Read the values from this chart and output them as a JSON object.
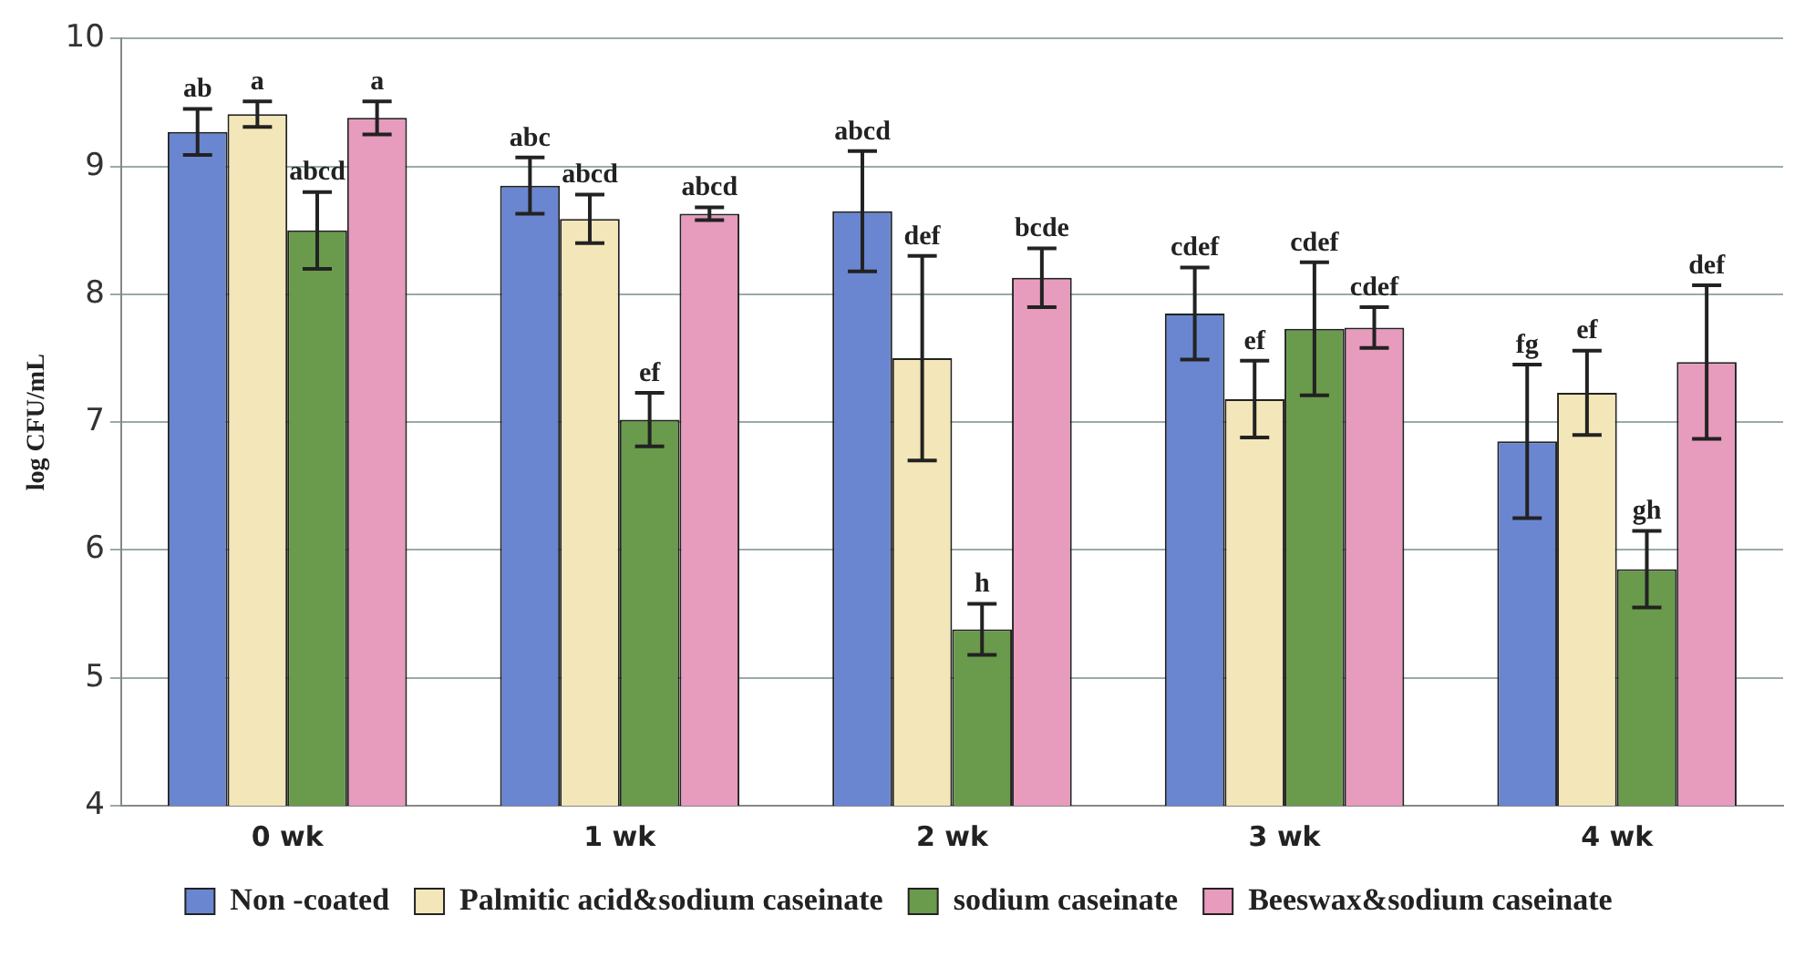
{
  "chart_data": {
    "type": "bar",
    "ylabel": "log CFU/mL",
    "categories": [
      "0 wk",
      "1 wk",
      "2 wk",
      "3 wk",
      "4 wk"
    ],
    "series": [
      {
        "name": "Non -coated",
        "color": "#6a86d0",
        "values": [
          9.27,
          8.85,
          8.65,
          7.85,
          6.85
        ],
        "errors": [
          0.18,
          0.22,
          0.47,
          0.36,
          0.6
        ]
      },
      {
        "name": "Palmitic acid&sodium caseinate",
        "color": "#f3e6b8",
        "values": [
          9.41,
          8.59,
          7.5,
          7.18,
          7.23
        ],
        "errors": [
          0.1,
          0.19,
          0.8,
          0.3,
          0.33
        ]
      },
      {
        "name": "sodium caseinate",
        "color": "#6a9a4c",
        "values": [
          8.5,
          7.02,
          5.38,
          7.73,
          5.85
        ],
        "errors": [
          0.3,
          0.21,
          0.2,
          0.52,
          0.3
        ]
      },
      {
        "name": "Beeswax&sodium caseinate",
        "color": "#e79bbd",
        "values": [
          9.38,
          8.63,
          8.13,
          7.74,
          7.47
        ],
        "errors": [
          0.13,
          0.05,
          0.23,
          0.16,
          0.6
        ]
      }
    ],
    "annotations": [
      "ab",
      "a",
      "abcd",
      "a",
      "abc",
      "abcd",
      "ef",
      "abcd",
      "abcd",
      "def",
      "h",
      "bcde",
      "cdef",
      "ef",
      "cdef",
      "cdef",
      "fg",
      "ef",
      "gh",
      "def"
    ],
    "ylim": [
      4,
      10
    ],
    "yticks": [
      4,
      5,
      6,
      7,
      8,
      9,
      10
    ],
    "grid": "y",
    "legend": "bottom"
  }
}
